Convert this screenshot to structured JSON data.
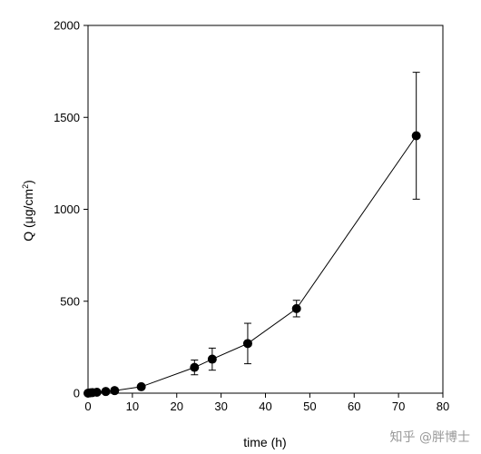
{
  "chart_data": {
    "type": "scatter",
    "xlabel": "time (h)",
    "ylabel": {
      "main": "Q (μg/cm",
      "sup": "2",
      "close": ")"
    },
    "xlim": [
      0,
      80
    ],
    "ylim": [
      0,
      2000
    ],
    "x_ticks": [
      0,
      10,
      20,
      30,
      40,
      50,
      60,
      70,
      80
    ],
    "y_ticks": [
      0,
      500,
      1000,
      1500,
      2000
    ],
    "grid": false,
    "connected": true,
    "series": [
      {
        "points": [
          {
            "x": 0,
            "y": 0,
            "err": 0
          },
          {
            "x": 0.5,
            "y": 2,
            "err": 0
          },
          {
            "x": 1,
            "y": 3,
            "err": 0
          },
          {
            "x": 2,
            "y": 5,
            "err": 0
          },
          {
            "x": 4,
            "y": 9,
            "err": 0
          },
          {
            "x": 6,
            "y": 14,
            "err": 0
          },
          {
            "x": 12,
            "y": 35,
            "err": 0
          },
          {
            "x": 24,
            "y": 140,
            "err": 40
          },
          {
            "x": 28,
            "y": 185,
            "err": 60
          },
          {
            "x": 36,
            "y": 270,
            "err": 110
          },
          {
            "x": 47,
            "y": 460,
            "err": 45
          },
          {
            "x": 74,
            "y": 1400,
            "err": 345
          }
        ]
      }
    ]
  },
  "watermark": {
    "text": "知乎 @胖博士"
  }
}
